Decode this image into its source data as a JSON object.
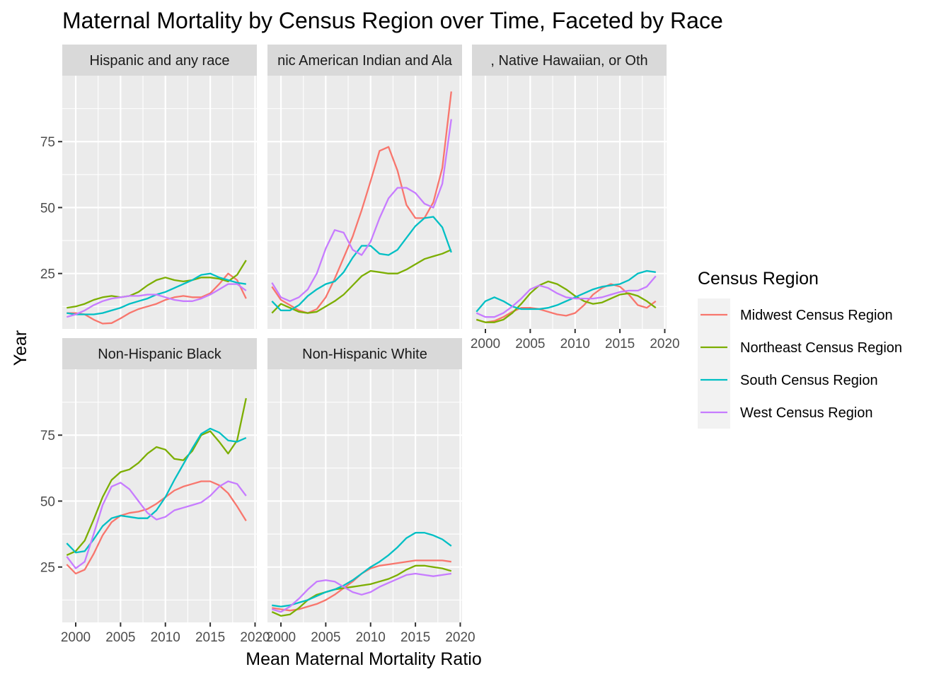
{
  "chart_data": {
    "type": "line",
    "title": "Maternal Mortality by Census Region over Time, Faceted by Race",
    "xlabel": "Mean Maternal Mortality Ratio",
    "ylabel": "Year",
    "x_ticks": [
      2000,
      2005,
      2010,
      2015,
      2020
    ],
    "x_tick_labels": [
      "2000",
      "2005",
      "2010",
      "2015",
      "2020"
    ],
    "y_ticks": [
      25,
      50,
      75
    ],
    "y_tick_labels": [
      "25",
      "50",
      "75"
    ],
    "xlim": [
      1998.5,
      2020.2
    ],
    "ylim": [
      4,
      100
    ],
    "grid": true,
    "legend": {
      "title": "Census Region",
      "position": "right",
      "entries": [
        {
          "name": "Midwest Census Region",
          "color": "#F8766D"
        },
        {
          "name": "Northeast Census Region",
          "color": "#7CAE00"
        },
        {
          "name": "South Census Region",
          "color": "#00BFC4"
        },
        {
          "name": "West Census Region",
          "color": "#C77CFF"
        }
      ]
    },
    "x": [
      1999,
      2000,
      2001,
      2002,
      2003,
      2004,
      2005,
      2006,
      2007,
      2008,
      2009,
      2010,
      2011,
      2012,
      2013,
      2014,
      2015,
      2016,
      2017,
      2018,
      2019
    ],
    "facets": [
      {
        "strip": "Hispanic and any race",
        "strip_visible": "Hispanic and any race",
        "series": [
          {
            "name": "Midwest Census Region",
            "values": [
              10,
              10,
              9.5,
              7.5,
              6,
              6.2,
              8,
              10,
              11.5,
              12.5,
              13.5,
              15,
              16,
              16.5,
              16,
              16,
              17.5,
              21,
              25,
              22.5,
              15.5
            ]
          },
          {
            "name": "Northeast Census Region",
            "values": [
              12,
              12.5,
              13.5,
              15,
              16,
              16.5,
              16,
              16.5,
              18,
              20.5,
              22.5,
              23.5,
              22.5,
              22,
              22.5,
              23.5,
              23.5,
              23,
              22,
              24.5,
              30
            ]
          },
          {
            "name": "South Census Region",
            "values": [
              10,
              9.5,
              9.5,
              9.5,
              10,
              11,
              12,
              13.5,
              14.5,
              15.5,
              17,
              18,
              19.5,
              21,
              22.5,
              24.5,
              25,
              23.5,
              22.5,
              21.5,
              21
            ]
          },
          {
            "name": "West Census Region",
            "values": [
              8.5,
              9.5,
              11,
              13,
              14.5,
              15.5,
              16,
              16.5,
              16.5,
              17,
              17,
              16,
              15,
              14.5,
              14.5,
              15.5,
              17,
              19,
              21,
              21,
              18.5
            ]
          }
        ]
      },
      {
        "strip": "Non-Hispanic American Indian and Alaska Native",
        "strip_visible": "nic American Indian and Ala",
        "series": [
          {
            "name": "Midwest Census Region",
            "values": [
              20,
              15,
              13,
              11,
              10,
              11.5,
              16,
              23,
              31,
              39,
              49,
              60,
              71.5,
              73,
              64,
              51,
              46,
              46,
              52,
              65,
              94
            ]
          },
          {
            "name": "Northeast Census Region",
            "values": [
              10,
              13.5,
              12,
              10.5,
              10,
              10.5,
              12.5,
              14.5,
              17,
              20.5,
              24,
              26,
              25.5,
              25,
              25,
              26.5,
              28.5,
              30.5,
              31.5,
              32.5,
              34
            ]
          },
          {
            "name": "South Census Region",
            "values": [
              14.5,
              11,
              11,
              13,
              16.5,
              19,
              21,
              22,
              25.5,
              31,
              35.5,
              35.5,
              32.5,
              32,
              34,
              38.5,
              43,
              46,
              46.5,
              42.5,
              33
            ]
          },
          {
            "name": "West Census Region",
            "values": [
              21.5,
              16,
              14.5,
              16,
              19,
              25,
              34.5,
              41.5,
              40.5,
              34,
              32,
              37,
              46,
              53.5,
              57.5,
              57.5,
              55.5,
              51.5,
              50,
              59,
              83.5
            ]
          }
        ]
      },
      {
        "strip": "Non-Hispanic Asian, Native Hawaiian, or Other Pacific Islander",
        "strip_visible": ", Native Hawaiian, or Oth",
        "series": [
          {
            "name": "Midwest Census Region",
            "values": [
              7.5,
              6.5,
              7,
              8.5,
              10.5,
              12,
              12,
              11.5,
              10.5,
              9.5,
              9,
              10,
              13,
              17,
              19.5,
              21,
              20,
              17,
              13,
              12,
              14.5
            ]
          },
          {
            "name": "Northeast Census Region",
            "values": [
              7.5,
              6.5,
              6.5,
              7.5,
              10,
              13.5,
              17.5,
              20.5,
              22,
              21,
              19,
              16.5,
              14.5,
              13.5,
              14,
              15.5,
              17,
              17.5,
              16.5,
              14.5,
              12
            ]
          },
          {
            "name": "South Census Region",
            "values": [
              10.5,
              14.5,
              16,
              14.5,
              12.5,
              11.5,
              11.5,
              11.5,
              12,
              13,
              14.5,
              16,
              17.5,
              19,
              20,
              20.5,
              21,
              22.5,
              25,
              26,
              25.5
            ]
          },
          {
            "name": "West Census Region",
            "values": [
              10,
              8.5,
              8.5,
              10,
              12.5,
              15.5,
              19,
              20.5,
              19.5,
              17.5,
              16,
              15.5,
              15.5,
              15.5,
              16,
              17,
              18,
              18.5,
              18.5,
              20,
              24
            ]
          }
        ]
      },
      {
        "strip": "Non-Hispanic Black",
        "strip_visible": "Non-Hispanic Black",
        "series": [
          {
            "name": "Midwest Census Region",
            "values": [
              26,
              22.5,
              24,
              30,
              37,
              42,
              44.5,
              45.5,
              46,
              47,
              49,
              51.5,
              54,
              55.5,
              56.5,
              57.5,
              57.5,
              56,
              53,
              48,
              42.5
            ]
          },
          {
            "name": "Northeast Census Region",
            "values": [
              29.5,
              31,
              35,
              43,
              51.5,
              58,
              61,
              62,
              64.5,
              68,
              70.5,
              69.5,
              66,
              65.5,
              69,
              75,
              76.5,
              72.5,
              68,
              73,
              89
            ]
          },
          {
            "name": "South Census Region",
            "values": [
              34,
              30.5,
              31,
              35.5,
              40.5,
              43.5,
              44.5,
              44,
              43.5,
              43.5,
              46.5,
              51.5,
              58,
              64,
              70,
              75.5,
              77.5,
              76,
              73,
              72.5,
              74
            ]
          },
          {
            "name": "West Census Region",
            "values": [
              29,
              24.5,
              27,
              37.5,
              48.5,
              55.5,
              57,
              54.5,
              50,
              45.5,
              43,
              44,
              46.5,
              47.5,
              48.5,
              49.5,
              52,
              55.5,
              57.5,
              56.5,
              52
            ]
          }
        ]
      },
      {
        "strip": "Non-Hispanic White",
        "strip_visible": "Non-Hispanic White",
        "series": [
          {
            "name": "Midwest Census Region",
            "values": [
              9.5,
              9,
              8.5,
              9,
              10,
              11,
              12.5,
              14.5,
              17,
              19.5,
              22.5,
              24.5,
              25.5,
              26,
              26.5,
              27,
              27.5,
              27.5,
              27.5,
              27.5,
              27
            ]
          },
          {
            "name": "Northeast Census Region",
            "values": [
              8,
              6.5,
              7,
              9.5,
              12.5,
              14.5,
              15.5,
              16.5,
              17,
              17.5,
              18,
              18.5,
              19.5,
              20.5,
              22,
              24,
              25.5,
              25.5,
              25,
              24.5,
              23.5
            ]
          },
          {
            "name": "South Census Region",
            "values": [
              10.5,
              10,
              10.5,
              11.5,
              12.5,
              14,
              15.5,
              16.5,
              18,
              20,
              22.5,
              25,
              27,
              29.5,
              32.5,
              36,
              38,
              38,
              37,
              35.5,
              33
            ]
          },
          {
            "name": "West Census Region",
            "values": [
              9,
              8,
              10,
              13,
              16.5,
              19.5,
              20,
              19.5,
              17.5,
              15.5,
              14.5,
              15.5,
              17.5,
              19,
              20.5,
              22,
              22.5,
              22,
              21.5,
              22,
              22.5
            ]
          }
        ]
      }
    ]
  }
}
